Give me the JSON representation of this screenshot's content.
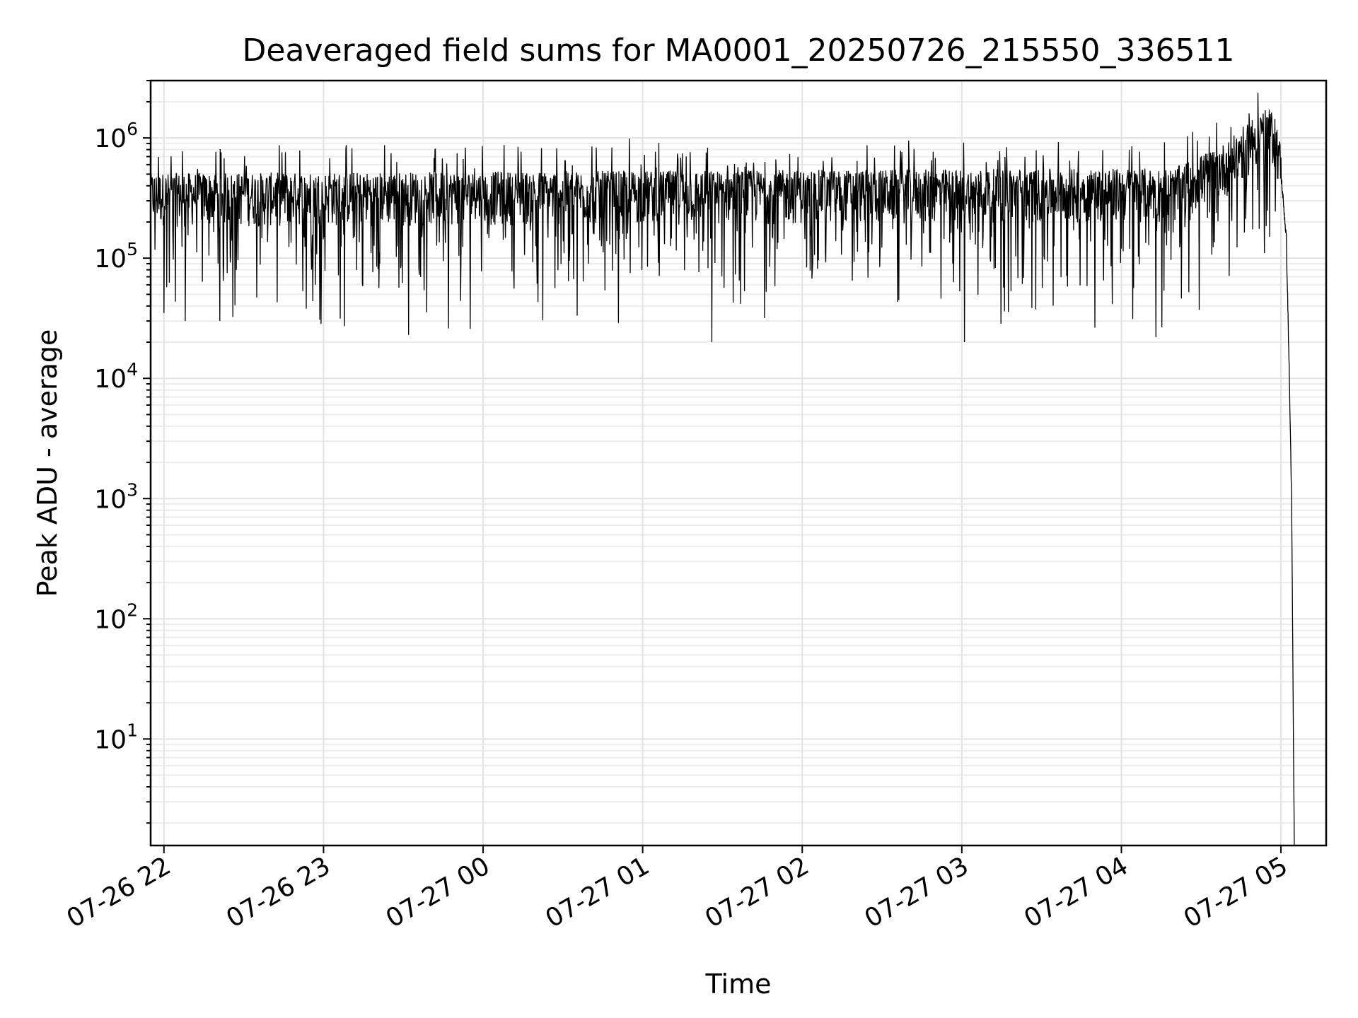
{
  "chart_data": {
    "type": "line",
    "title": "Deaveraged field sums for MA0001_20250726_215550_336511",
    "xlabel": "Time",
    "ylabel": "Peak ADU - average",
    "yscale": "log",
    "xlim": [
      "2025-07-26 21:55",
      "2025-07-27 05:17"
    ],
    "ylim": [
      1.3,
      3000000
    ],
    "grid": true,
    "x_ticks": [
      "07-26 22",
      "07-26 23",
      "07-27 00",
      "07-27 01",
      "07-27 02",
      "07-27 03",
      "07-27 04",
      "07-27 05"
    ],
    "y_ticks": [
      {
        "base": "10",
        "exp": "1",
        "value": 10
      },
      {
        "base": "10",
        "exp": "2",
        "value": 100
      },
      {
        "base": "10",
        "exp": "3",
        "value": 1000
      },
      {
        "base": "10",
        "exp": "4",
        "value": 10000
      },
      {
        "base": "10",
        "exp": "5",
        "value": 100000
      },
      {
        "base": "10",
        "exp": "6",
        "value": 1000000
      }
    ],
    "series": [
      {
        "color": "#000000",
        "baseline": [
          [
            "2025-07-26 21:55",
            300000
          ],
          [
            "2025-07-27 04:20",
            330000
          ],
          [
            "2025-07-27 04:40",
            550000
          ],
          [
            "2025-07-27 04:50",
            900000
          ],
          [
            "2025-07-27 04:55",
            1050000
          ],
          [
            "2025-07-27 04:58",
            900000
          ],
          [
            "2025-07-27 05:00",
            500000
          ],
          [
            "2025-07-27 05:02",
            150000
          ],
          [
            "2025-07-27 05:03",
            15000
          ],
          [
            "2025-07-27 05:04",
            1000
          ],
          [
            "2025-07-27 05:05",
            1.3
          ]
        ],
        "notable_points": [
          [
            "2025-07-26 22:00",
            35000
          ],
          [
            "2025-07-26 22:08",
            30000
          ],
          [
            "2025-07-26 22:21",
            30000
          ],
          [
            "2025-07-26 23:32",
            23000
          ],
          [
            "2025-07-26 23:47",
            26000
          ],
          [
            "2025-07-27 00:55",
            990000
          ],
          [
            "2025-07-27 01:26",
            20000
          ],
          [
            "2025-07-27 02:40",
            950000
          ],
          [
            "2025-07-27 03:01",
            20000
          ],
          [
            "2025-07-27 04:13",
            22000
          ],
          [
            "2025-07-27 04:48",
            1600000
          ],
          [
            "2025-07-27 04:53",
            1350000
          ]
        ]
      }
    ]
  }
}
